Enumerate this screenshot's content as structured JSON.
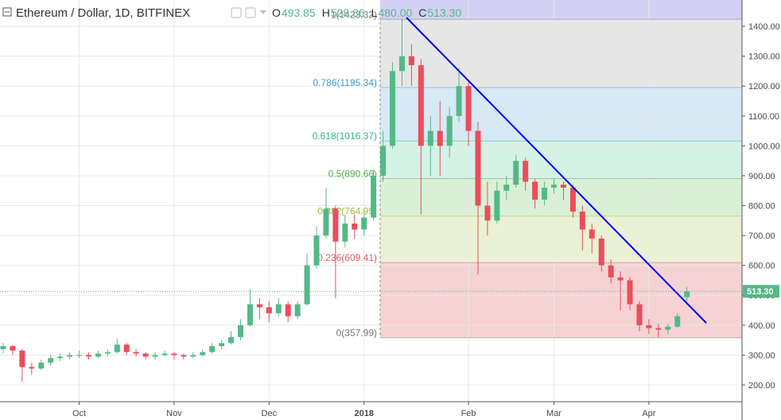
{
  "header": {
    "title": "Ethereum / Dollar, 1D, BITFINEX",
    "ohlc": [
      {
        "key": "O",
        "text": "493.85"
      },
      {
        "key": "H",
        "text": "528.36"
      },
      {
        "key": "L",
        "text": "480.00"
      },
      {
        "key": "C",
        "text": "513.30"
      }
    ]
  },
  "chart_data": {
    "type": "candlestick",
    "categories": [
      null,
      null,
      null,
      null,
      null,
      null,
      null,
      null,
      "Oct",
      null,
      null,
      null,
      null,
      null,
      null,
      null,
      null,
      null,
      "Nov",
      null,
      null,
      null,
      null,
      null,
      null,
      null,
      null,
      null,
      "Dec",
      null,
      null,
      null,
      null,
      null,
      null,
      null,
      null,
      null,
      "2018",
      null,
      null,
      null,
      null,
      null,
      null,
      null,
      null,
      null,
      null,
      "Feb",
      null,
      null,
      null,
      null,
      null,
      null,
      null,
      null,
      "Mar",
      null,
      null,
      null,
      null,
      null,
      null,
      null,
      null,
      null,
      "Apr",
      null,
      null,
      null,
      null
    ],
    "open": [
      320,
      330,
      315,
      260,
      255,
      275,
      290,
      295,
      300,
      300,
      295,
      305,
      310,
      335,
      310,
      305,
      295,
      300,
      305,
      300,
      295,
      300,
      310,
      330,
      340,
      360,
      400,
      470,
      460,
      440,
      470,
      430,
      470,
      600,
      700,
      790,
      680,
      740,
      720,
      760,
      900,
      1000,
      1250,
      1300,
      1270,
      1000,
      1050,
      1000,
      1100,
      1200,
      1050,
      800,
      750,
      850,
      870,
      950,
      880,
      820,
      860,
      870,
      860,
      780,
      720,
      690,
      600,
      560,
      550,
      470,
      400,
      390,
      385,
      395,
      493.85
    ],
    "high": [
      340,
      335,
      320,
      275,
      285,
      300,
      305,
      310,
      315,
      310,
      315,
      320,
      355,
      340,
      320,
      310,
      310,
      315,
      310,
      305,
      310,
      320,
      340,
      350,
      380,
      420,
      520,
      490,
      480,
      490,
      480,
      480,
      640,
      730,
      860,
      800,
      770,
      770,
      780,
      920,
      1050,
      1280,
      1423.32,
      1340,
      1290,
      1100,
      1150,
      1130,
      1260,
      1220,
      1080,
      880,
      880,
      900,
      970,
      960,
      890,
      880,
      890,
      880,
      870,
      800,
      740,
      700,
      620,
      580,
      560,
      480,
      420,
      405,
      405,
      440,
      528.36
    ],
    "low": [
      305,
      300,
      210,
      235,
      250,
      265,
      280,
      285,
      290,
      285,
      290,
      295,
      305,
      300,
      295,
      285,
      285,
      295,
      285,
      285,
      290,
      295,
      305,
      320,
      335,
      350,
      395,
      420,
      410,
      430,
      410,
      420,
      465,
      590,
      690,
      490,
      660,
      690,
      700,
      750,
      880,
      990,
      1200,
      1200,
      770,
      900,
      900,
      960,
      1080,
      1000,
      570,
      700,
      740,
      820,
      860,
      850,
      790,
      800,
      840,
      820,
      760,
      650,
      640,
      580,
      540,
      450,
      450,
      380,
      370,
      360,
      370,
      390,
      480.0
    ],
    "close": [
      330,
      315,
      260,
      255,
      275,
      290,
      295,
      300,
      300,
      295,
      305,
      310,
      335,
      310,
      305,
      295,
      300,
      305,
      300,
      295,
      300,
      310,
      330,
      340,
      360,
      400,
      470,
      460,
      440,
      470,
      430,
      470,
      600,
      700,
      790,
      680,
      740,
      720,
      760,
      900,
      1000,
      1250,
      1300,
      1270,
      1000,
      1050,
      1000,
      1100,
      1200,
      1050,
      800,
      750,
      850,
      870,
      950,
      880,
      820,
      860,
      870,
      860,
      780,
      720,
      690,
      600,
      560,
      550,
      470,
      400,
      390,
      385,
      395,
      430,
      513.3
    ],
    "up_color": "#53b987",
    "down_color": "#eb4d5c",
    "ylim": [
      144,
      1488
    ],
    "yticks": [
      {
        "value": 200,
        "label": "200.00"
      },
      {
        "value": 300,
        "label": "300.00"
      },
      {
        "value": 400,
        "label": "400.00"
      },
      {
        "value": 500,
        "label": "500.00"
      },
      {
        "value": 600,
        "label": "600.00"
      },
      {
        "value": 700,
        "label": "700.00"
      },
      {
        "value": 800,
        "label": "800.00"
      },
      {
        "value": 900,
        "label": "900.00"
      },
      {
        "value": 1000,
        "label": "1000.00"
      },
      {
        "value": 1100,
        "label": "1100.00"
      },
      {
        "value": 1200,
        "label": "1200.00"
      },
      {
        "value": 1300,
        "label": "1300.00"
      },
      {
        "value": 1400,
        "label": "1400.00"
      }
    ],
    "grid": true,
    "last_price": {
      "value": 513.3,
      "label": "513.30",
      "color": "#53b987"
    },
    "fib_levels": [
      {
        "label": "1(1423.32)",
        "value": 1423.32,
        "color": "#d3d0f3",
        "label_color": "#787878"
      },
      {
        "label": "0.786(1195.34)",
        "value": 1195.34,
        "color": "#e6e6e6",
        "label_color": "#3d9bd6"
      },
      {
        "label": "0.618(1016.37)",
        "value": 1016.37,
        "color": "#d6e9f4",
        "label_color": "#2fb38b"
      },
      {
        "label": "0.5(890.66)",
        "value": 890.66,
        "color": "#d4f2e6",
        "label_color": "#4caf50"
      },
      {
        "label": "0.382(764.95)",
        "value": 764.95,
        "color": "#daf0d6",
        "label_color": "#9bbf3c"
      },
      {
        "label": "0.236(609.41)",
        "value": 609.41,
        "color": "#ebf1d5",
        "label_color": "#e35a5a"
      },
      {
        "label": "0(357.99)",
        "value": 357.99,
        "color": "#f5d3d3",
        "label_color": "#787878"
      }
    ]
  }
}
